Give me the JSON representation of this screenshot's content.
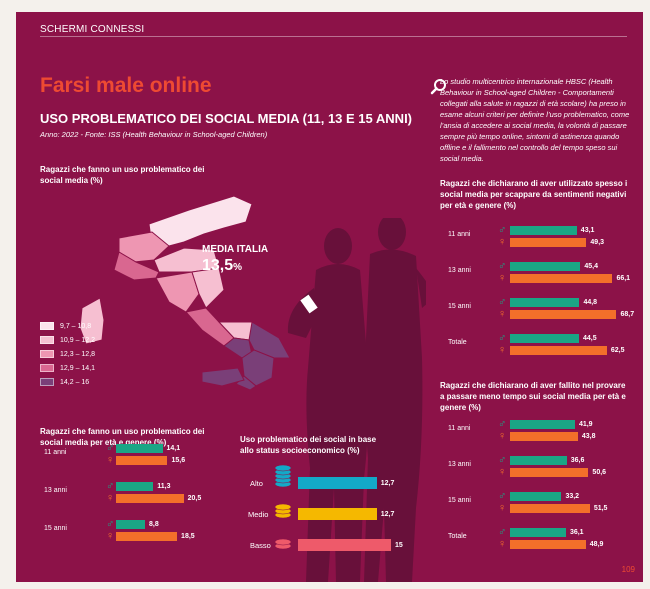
{
  "header": "SCHERMI CONNESSI",
  "title": "Farsi male online",
  "subtitle": "USO PROBLEMATICO DEI SOCIAL MEDIA (11, 13 E 15 ANNI)",
  "source": "Anno: 2022 - Fonte: ISS (Health Behaviour in School-aged Children)",
  "intro": "Lo studio multicentrico internazionale HBSC (Health Behaviour in School-aged Children - Comportamenti collegati alla salute in ragazzi di età scolare) ha preso in esame alcuni criteri per definire l’uso problematico, come l’ansia di accedere ai social media, la volontà di passare sempre più tempo online, sintomi di astinenza quando offline e il fallimento nel controllo del tempo speso sui social media.",
  "page_number": "109",
  "colors": {
    "background": "#8c1248",
    "title": "#ee4a32",
    "male": "#1aa685",
    "female": "#f36f2a",
    "alto": "#13a9c8",
    "medio": "#f5b800",
    "basso": "#ee5a6a"
  },
  "map": {
    "title": "Ragazzi che fanno un uso problematico dei social media (%)",
    "media_label": "MEDIA ITALIA",
    "media_value": "13,5",
    "media_unit": "%",
    "legend": [
      {
        "label": "9,7 – 10,8",
        "color": "#fbe3ec"
      },
      {
        "label": "10,9 – 12,2",
        "color": "#f6bfd1"
      },
      {
        "label": "12,3 – 12,8",
        "color": "#ee96b2"
      },
      {
        "label": "12,9 – 14,1",
        "color": "#d96790"
      },
      {
        "label": "14,2 – 16",
        "color": "#7a3f78"
      }
    ]
  },
  "chart_data": [
    {
      "type": "bar",
      "title": "Ragazzi che fanno un uso problematico dei social media per età e genere (%)",
      "categories": [
        "11 anni",
        "13 anni",
        "15 anni"
      ],
      "series": [
        {
          "name": "♂",
          "values": [
            14.1,
            11.3,
            8.8
          ],
          "labels": [
            "14,1",
            "11,3",
            "8,8"
          ]
        },
        {
          "name": "♀",
          "values": [
            15.6,
            20.5,
            18.5
          ],
          "labels": [
            "15,6",
            "20,5",
            "18,5"
          ]
        }
      ]
    },
    {
      "type": "bar",
      "title": "Uso problematico dei social in base allo status socioeconomico (%)",
      "categories": [
        "Alto",
        "Medio",
        "Basso"
      ],
      "values": [
        12.7,
        12.7,
        15
      ],
      "labels": [
        "12,7",
        "12,7",
        "15"
      ]
    },
    {
      "type": "bar",
      "title": "Ragazzi che dichiarano di aver utilizzato spesso i social media per scappare da sentimenti negativi per età e genere (%)",
      "categories": [
        "11 anni",
        "13 anni",
        "15 anni",
        "Totale"
      ],
      "series": [
        {
          "name": "♂",
          "values": [
            43.1,
            45.4,
            44.8,
            44.5
          ],
          "labels": [
            "43,1",
            "45,4",
            "44,8",
            "44,5"
          ]
        },
        {
          "name": "♀",
          "values": [
            49.3,
            66.1,
            68.7,
            62.5
          ],
          "labels": [
            "49,3",
            "66,1",
            "68,7",
            "62,5"
          ]
        }
      ]
    },
    {
      "type": "bar",
      "title": "Ragazzi che dichiarano di aver fallito nel provare a passare meno tempo sui social media per età e genere (%)",
      "categories": [
        "11 anni",
        "13 anni",
        "15 anni",
        "Totale"
      ],
      "series": [
        {
          "name": "♂",
          "values": [
            41.9,
            36.6,
            33.2,
            36.1
          ],
          "labels": [
            "41,9",
            "36,6",
            "33,2",
            "36,1"
          ]
        },
        {
          "name": "♀",
          "values": [
            43.8,
            50.6,
            51.5,
            48.9
          ],
          "labels": [
            "43,8",
            "50,6",
            "51,5",
            "48,9"
          ]
        }
      ]
    }
  ]
}
